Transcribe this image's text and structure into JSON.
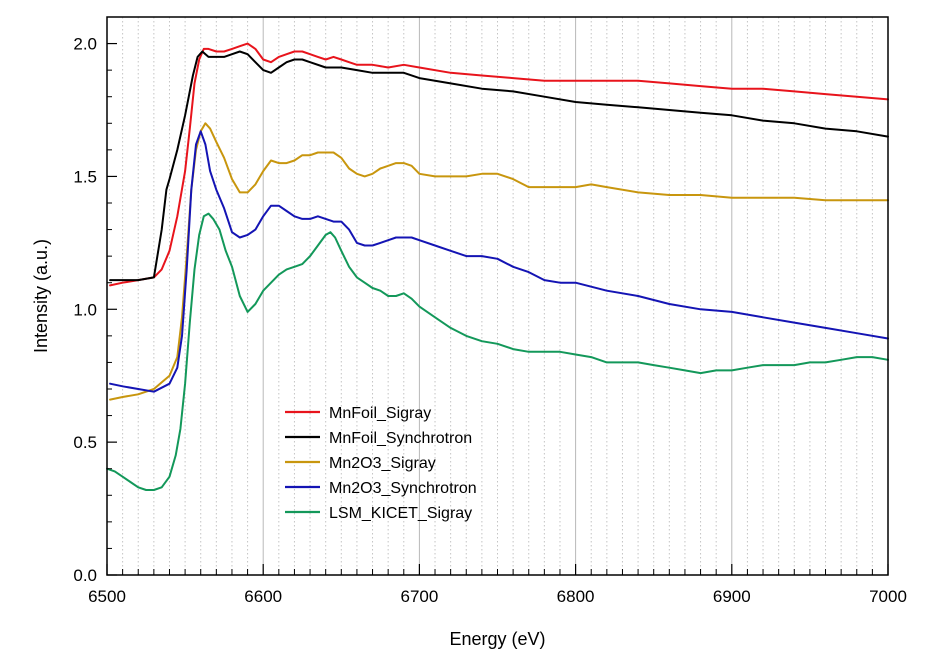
{
  "chart_data": {
    "type": "line",
    "title": "",
    "xlabel": "Energy (eV)",
    "ylabel": "Intensity (a.u.)",
    "xlim": [
      6500,
      7000
    ],
    "ylim": [
      0.0,
      2.1
    ],
    "x_ticks": [
      6500,
      6600,
      6700,
      6800,
      6900,
      7000
    ],
    "x_tick_labels": [
      "6500",
      "6600",
      "6700",
      "6800",
      "6900",
      "7000"
    ],
    "y_ticks": [
      0.0,
      0.5,
      1.0,
      1.5,
      2.0
    ],
    "y_tick_labels": [
      "0.0",
      "0.5",
      "1.0",
      "1.5",
      "2.0"
    ],
    "grid": "vertical lines on",
    "legend_position": "lower-left",
    "series": [
      {
        "name": "MnFoil_Sigray",
        "color": "#e8141c",
        "x": [
          6502,
          6510,
          6520,
          6530,
          6535,
          6540,
          6545,
          6550,
          6553,
          6556,
          6559,
          6562,
          6565,
          6570,
          6575,
          6580,
          6585,
          6590,
          6595,
          6600,
          6605,
          6610,
          6615,
          6620,
          6625,
          6630,
          6635,
          6640,
          6645,
          6650,
          6655,
          6660,
          6665,
          6670,
          6680,
          6690,
          6700,
          6720,
          6740,
          6760,
          6780,
          6800,
          6820,
          6840,
          6860,
          6880,
          6900,
          6920,
          6940,
          6960,
          6980,
          7000
        ],
        "y": [
          1.09,
          1.1,
          1.11,
          1.12,
          1.15,
          1.22,
          1.35,
          1.52,
          1.68,
          1.85,
          1.94,
          1.98,
          1.98,
          1.97,
          1.97,
          1.98,
          1.99,
          2.0,
          1.98,
          1.94,
          1.93,
          1.95,
          1.96,
          1.97,
          1.97,
          1.96,
          1.95,
          1.94,
          1.95,
          1.94,
          1.93,
          1.92,
          1.92,
          1.92,
          1.91,
          1.92,
          1.91,
          1.89,
          1.88,
          1.87,
          1.86,
          1.86,
          1.86,
          1.86,
          1.85,
          1.84,
          1.83,
          1.83,
          1.82,
          1.81,
          1.8,
          1.79
        ]
      },
      {
        "name": "MnFoil_Synchrotron",
        "color": "#000000",
        "x": [
          6502,
          6510,
          6520,
          6530,
          6535,
          6538,
          6540,
          6545,
          6550,
          6555,
          6558,
          6561,
          6565,
          6570,
          6575,
          6580,
          6585,
          6590,
          6595,
          6600,
          6605,
          6610,
          6615,
          6620,
          6625,
          6630,
          6640,
          6650,
          6660,
          6670,
          6680,
          6690,
          6700,
          6720,
          6740,
          6760,
          6780,
          6800,
          6820,
          6840,
          6860,
          6880,
          6900,
          6920,
          6940,
          6960,
          6980,
          7000
        ],
        "y": [
          1.11,
          1.11,
          1.11,
          1.12,
          1.3,
          1.45,
          1.49,
          1.6,
          1.73,
          1.88,
          1.95,
          1.97,
          1.95,
          1.95,
          1.95,
          1.96,
          1.97,
          1.96,
          1.93,
          1.9,
          1.89,
          1.91,
          1.93,
          1.94,
          1.94,
          1.93,
          1.91,
          1.91,
          1.9,
          1.89,
          1.89,
          1.89,
          1.87,
          1.85,
          1.83,
          1.82,
          1.8,
          1.78,
          1.77,
          1.76,
          1.75,
          1.74,
          1.73,
          1.71,
          1.7,
          1.68,
          1.67,
          1.65
        ]
      },
      {
        "name": "Mn2O3_Sigray",
        "color": "#c8960e",
        "x": [
          6502,
          6510,
          6520,
          6530,
          6540,
          6545,
          6548,
          6551,
          6554,
          6557,
          6560,
          6563,
          6566,
          6570,
          6575,
          6580,
          6585,
          6590,
          6595,
          6600,
          6605,
          6610,
          6615,
          6620,
          6625,
          6630,
          6635,
          6640,
          6645,
          6650,
          6655,
          6660,
          6665,
          6670,
          6675,
          6680,
          6685,
          6690,
          6695,
          6700,
          6710,
          6720,
          6730,
          6740,
          6750,
          6760,
          6770,
          6780,
          6790,
          6800,
          6810,
          6820,
          6840,
          6860,
          6880,
          6900,
          6920,
          6940,
          6960,
          6980,
          7000
        ],
        "y": [
          0.66,
          0.67,
          0.68,
          0.7,
          0.75,
          0.82,
          0.97,
          1.2,
          1.45,
          1.6,
          1.67,
          1.7,
          1.68,
          1.63,
          1.57,
          1.49,
          1.44,
          1.44,
          1.47,
          1.52,
          1.56,
          1.55,
          1.55,
          1.56,
          1.58,
          1.58,
          1.59,
          1.59,
          1.59,
          1.57,
          1.53,
          1.51,
          1.5,
          1.51,
          1.53,
          1.54,
          1.55,
          1.55,
          1.54,
          1.51,
          1.5,
          1.5,
          1.5,
          1.51,
          1.51,
          1.49,
          1.46,
          1.46,
          1.46,
          1.46,
          1.47,
          1.46,
          1.44,
          1.43,
          1.43,
          1.42,
          1.42,
          1.42,
          1.41,
          1.41,
          1.41
        ]
      },
      {
        "name": "Mn2O3_Synchrotron",
        "color": "#1414b4",
        "x": [
          6502,
          6510,
          6520,
          6530,
          6540,
          6545,
          6548,
          6551,
          6554,
          6557,
          6560,
          6563,
          6566,
          6570,
          6575,
          6580,
          6585,
          6590,
          6595,
          6600,
          6605,
          6610,
          6615,
          6620,
          6625,
          6630,
          6635,
          6640,
          6645,
          6650,
          6655,
          6660,
          6665,
          6670,
          6675,
          6680,
          6685,
          6690,
          6695,
          6700,
          6710,
          6720,
          6730,
          6740,
          6750,
          6760,
          6770,
          6780,
          6790,
          6800,
          6820,
          6840,
          6860,
          6880,
          6900,
          6920,
          6940,
          6960,
          6980,
          7000
        ],
        "y": [
          0.72,
          0.71,
          0.7,
          0.69,
          0.72,
          0.78,
          0.9,
          1.15,
          1.45,
          1.62,
          1.67,
          1.62,
          1.52,
          1.45,
          1.38,
          1.29,
          1.27,
          1.28,
          1.3,
          1.35,
          1.39,
          1.39,
          1.37,
          1.35,
          1.34,
          1.34,
          1.35,
          1.34,
          1.33,
          1.33,
          1.3,
          1.25,
          1.24,
          1.24,
          1.25,
          1.26,
          1.27,
          1.27,
          1.27,
          1.26,
          1.24,
          1.22,
          1.2,
          1.2,
          1.19,
          1.16,
          1.14,
          1.11,
          1.1,
          1.1,
          1.07,
          1.05,
          1.02,
          1.0,
          0.99,
          0.97,
          0.95,
          0.93,
          0.91,
          0.89
        ]
      },
      {
        "name": "LSM_KICET_Sigray",
        "color": "#13985a",
        "x": [
          6500,
          6505,
          6510,
          6515,
          6520,
          6525,
          6530,
          6535,
          6540,
          6544,
          6547,
          6550,
          6553,
          6556,
          6559,
          6562,
          6565,
          6568,
          6572,
          6576,
          6580,
          6585,
          6590,
          6595,
          6600,
          6605,
          6610,
          6615,
          6620,
          6625,
          6630,
          6635,
          6640,
          6643,
          6646,
          6650,
          6655,
          6660,
          6665,
          6670,
          6675,
          6680,
          6685,
          6690,
          6695,
          6700,
          6710,
          6720,
          6730,
          6740,
          6750,
          6760,
          6770,
          6780,
          6790,
          6800,
          6810,
          6820,
          6830,
          6840,
          6850,
          6860,
          6870,
          6880,
          6890,
          6900,
          6910,
          6920,
          6930,
          6940,
          6950,
          6960,
          6970,
          6980,
          6990,
          7000
        ],
        "y": [
          0.4,
          0.39,
          0.37,
          0.35,
          0.33,
          0.32,
          0.32,
          0.33,
          0.37,
          0.45,
          0.55,
          0.72,
          0.95,
          1.15,
          1.28,
          1.35,
          1.36,
          1.34,
          1.3,
          1.22,
          1.16,
          1.05,
          0.99,
          1.02,
          1.07,
          1.1,
          1.13,
          1.15,
          1.16,
          1.17,
          1.2,
          1.24,
          1.28,
          1.29,
          1.27,
          1.22,
          1.16,
          1.12,
          1.1,
          1.08,
          1.07,
          1.05,
          1.05,
          1.06,
          1.04,
          1.01,
          0.97,
          0.93,
          0.9,
          0.88,
          0.87,
          0.85,
          0.84,
          0.84,
          0.84,
          0.83,
          0.82,
          0.8,
          0.8,
          0.8,
          0.79,
          0.78,
          0.77,
          0.76,
          0.77,
          0.77,
          0.78,
          0.79,
          0.79,
          0.79,
          0.8,
          0.8,
          0.81,
          0.82,
          0.82,
          0.81
        ]
      }
    ]
  }
}
